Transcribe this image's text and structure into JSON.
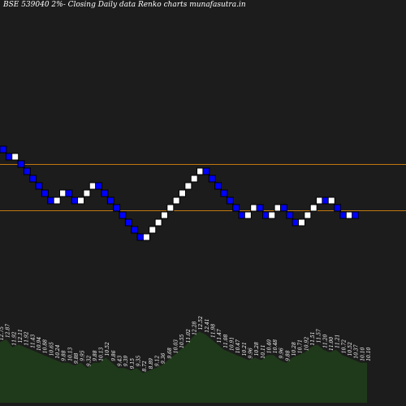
{
  "title": "BSE 539040  2%-  Closing Daily data  Renko  charts munafasutra.in",
  "colors": {
    "background": "#1c1c1c",
    "up_brick": "#ffffff",
    "down_brick": "#0000ff",
    "reference_line": "#c07810",
    "volume_area": "#1f3a1a"
  },
  "chart_data": {
    "type": "renko",
    "title": "BSE 539040  2%-  Closing Daily data  Renko  charts munafasutra.in",
    "brick_size_label": "2%",
    "bricks": [
      {
        "level": 16,
        "dir": "down"
      },
      {
        "level": 15,
        "dir": "down"
      },
      {
        "level": 15,
        "dir": "up"
      },
      {
        "level": 14,
        "dir": "down"
      },
      {
        "level": 13,
        "dir": "down"
      },
      {
        "level": 12,
        "dir": "down"
      },
      {
        "level": 11,
        "dir": "down"
      },
      {
        "level": 10,
        "dir": "down"
      },
      {
        "level": 9,
        "dir": "down"
      },
      {
        "level": 9,
        "dir": "up"
      },
      {
        "level": 10,
        "dir": "up"
      },
      {
        "level": 10,
        "dir": "down"
      },
      {
        "level": 9,
        "dir": "down"
      },
      {
        "level": 9,
        "dir": "up"
      },
      {
        "level": 10,
        "dir": "up"
      },
      {
        "level": 11,
        "dir": "up"
      },
      {
        "level": 11,
        "dir": "down"
      },
      {
        "level": 10,
        "dir": "down"
      },
      {
        "level": 9,
        "dir": "down"
      },
      {
        "level": 8,
        "dir": "down"
      },
      {
        "level": 7,
        "dir": "down"
      },
      {
        "level": 6,
        "dir": "down"
      },
      {
        "level": 5,
        "dir": "down"
      },
      {
        "level": 4,
        "dir": "down"
      },
      {
        "level": 4,
        "dir": "up"
      },
      {
        "level": 5,
        "dir": "up"
      },
      {
        "level": 6,
        "dir": "up"
      },
      {
        "level": 7,
        "dir": "up"
      },
      {
        "level": 8,
        "dir": "up"
      },
      {
        "level": 9,
        "dir": "up"
      },
      {
        "level": 10,
        "dir": "up"
      },
      {
        "level": 11,
        "dir": "up"
      },
      {
        "level": 12,
        "dir": "up"
      },
      {
        "level": 13,
        "dir": "up"
      },
      {
        "level": 13,
        "dir": "down"
      },
      {
        "level": 12,
        "dir": "down"
      },
      {
        "level": 11,
        "dir": "down"
      },
      {
        "level": 10,
        "dir": "down"
      },
      {
        "level": 9,
        "dir": "down"
      },
      {
        "level": 8,
        "dir": "down"
      },
      {
        "level": 7,
        "dir": "down"
      },
      {
        "level": 7,
        "dir": "up"
      },
      {
        "level": 8,
        "dir": "up"
      },
      {
        "level": 8,
        "dir": "down"
      },
      {
        "level": 7,
        "dir": "down"
      },
      {
        "level": 7,
        "dir": "up"
      },
      {
        "level": 8,
        "dir": "up"
      },
      {
        "level": 8,
        "dir": "down"
      },
      {
        "level": 7,
        "dir": "down"
      },
      {
        "level": 6,
        "dir": "down"
      },
      {
        "level": 6,
        "dir": "up"
      },
      {
        "level": 7,
        "dir": "up"
      },
      {
        "level": 8,
        "dir": "up"
      },
      {
        "level": 9,
        "dir": "up"
      },
      {
        "level": 9,
        "dir": "down"
      },
      {
        "level": 9,
        "dir": "up"
      },
      {
        "level": 8,
        "dir": "down"
      },
      {
        "level": 7,
        "dir": "down"
      },
      {
        "level": 7,
        "dir": "up"
      },
      {
        "level": 7,
        "dir": "down"
      }
    ],
    "reference_levels": [
      14.6,
      8.2
    ],
    "volume_labels": [
      "12.75",
      "12.87",
      "11.92",
      "12.11",
      "11.92",
      "11.43",
      "10.94",
      "10.88",
      "10.65",
      "10.24",
      "9.88",
      "10.13",
      "9.88",
      "9.95",
      "9.32",
      "9.88",
      "10.13",
      "10.52",
      "9.86",
      "9.43",
      "9.39",
      "9.15",
      "9.35",
      "8.72",
      "8.89",
      "9.12",
      "9.36",
      "9.68",
      "10.03",
      "10.55",
      "11.02",
      "12.28",
      "12.52",
      "12.41",
      "11.98",
      "11.47",
      "11.08",
      "10.91",
      "10.47",
      "10.21",
      "9.96",
      "10.28",
      "10.11",
      "10.40",
      "10.48",
      "9.96",
      "9.88",
      "10.28",
      "10.71",
      "10.92",
      "11.51",
      "11.57",
      "11.20",
      "11.00",
      "11.21",
      "10.72",
      "10.52",
      "10.37",
      "10.10",
      "10.10"
    ],
    "volume_values": [
      14,
      15,
      12,
      13,
      12,
      11,
      10,
      9,
      8,
      7,
      6,
      6,
      5,
      6,
      4,
      6,
      6,
      8,
      6,
      4,
      4,
      3,
      4,
      2,
      3,
      4,
      5,
      7,
      9,
      11,
      13,
      16,
      18,
      17,
      15,
      13,
      11,
      10,
      9,
      8,
      7,
      8,
      7,
      9,
      9,
      7,
      6,
      8,
      9,
      10,
      12,
      13,
      11,
      10,
      11,
      9,
      8,
      7,
      6,
      6
    ]
  }
}
